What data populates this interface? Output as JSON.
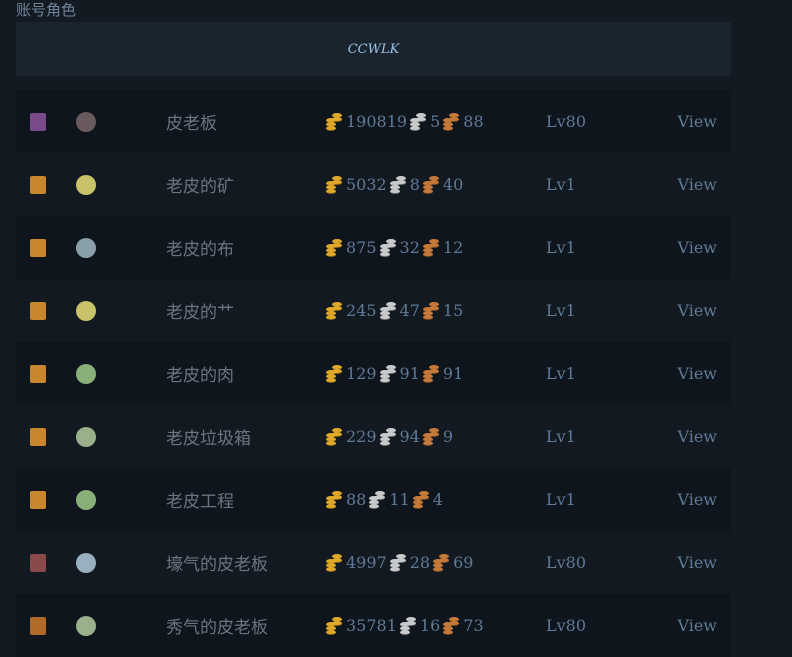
{
  "section_title": "账号角色",
  "account": {
    "name": "CCWLK"
  },
  "colors": {
    "gold": "#e0a92a",
    "silver": "#c8cacc",
    "copper": "#c67a3a",
    "text": "#5f7a96"
  },
  "characters": [
    {
      "portrait_icon": "night-elf-female-portrait",
      "portrait_color": "#7a4a8a",
      "spec_icon": "spec-icon-dark",
      "spec_color": "#6a5a5e",
      "name": "皮老板",
      "gold": "190819",
      "silver": "5",
      "copper": "88",
      "level": "Lv80",
      "action": "View"
    },
    {
      "portrait_icon": "human-male-portrait",
      "portrait_color": "#c8862e",
      "spec_icon": "spec-icon-yellow",
      "spec_color": "#c8c26a",
      "name": "老皮的矿",
      "gold": "5032",
      "silver": "8",
      "copper": "40",
      "level": "Lv1",
      "action": "View"
    },
    {
      "portrait_icon": "human-male-portrait",
      "portrait_color": "#c8862e",
      "spec_icon": "spec-icon-grey",
      "spec_color": "#8aa0a8",
      "name": "老皮的布",
      "gold": "875",
      "silver": "32",
      "copper": "12",
      "level": "Lv1",
      "action": "View"
    },
    {
      "portrait_icon": "human-male-portrait",
      "portrait_color": "#c8862e",
      "spec_icon": "spec-icon-yellow",
      "spec_color": "#c8c26a",
      "name": "老皮的艹",
      "gold": "245",
      "silver": "47",
      "copper": "15",
      "level": "Lv1",
      "action": "View"
    },
    {
      "portrait_icon": "human-male-portrait",
      "portrait_color": "#c8862e",
      "spec_icon": "sword-icon",
      "spec_color": "#8ab07a",
      "name": "老皮的肉",
      "gold": "129",
      "silver": "91",
      "copper": "91",
      "level": "Lv1",
      "action": "View"
    },
    {
      "portrait_icon": "human-male-portrait",
      "portrait_color": "#c8862e",
      "spec_icon": "dagger-icon",
      "spec_color": "#9ab08a",
      "name": "老皮垃圾箱",
      "gold": "229",
      "silver": "94",
      "copper": "9",
      "level": "Lv1",
      "action": "View"
    },
    {
      "portrait_icon": "human-male-portrait",
      "portrait_color": "#c8862e",
      "spec_icon": "sword-icon",
      "spec_color": "#8ab07a",
      "name": "老皮工程",
      "gold": "88",
      "silver": "11",
      "copper": "4",
      "level": "Lv1",
      "action": "View"
    },
    {
      "portrait_icon": "undead-portrait",
      "portrait_color": "#8a4a4a",
      "spec_icon": "spec-icon-blue",
      "spec_color": "#9ab0c0",
      "name": "壕气的皮老板",
      "gold": "4997",
      "silver": "28",
      "copper": "69",
      "level": "Lv80",
      "action": "View"
    },
    {
      "portrait_icon": "orc-portrait",
      "portrait_color": "#b06a2a",
      "spec_icon": "dagger-icon",
      "spec_color": "#9ab08a",
      "name": "秀气的皮老板",
      "gold": "35781",
      "silver": "16",
      "copper": "73",
      "level": "Lv80",
      "action": "View"
    }
  ]
}
